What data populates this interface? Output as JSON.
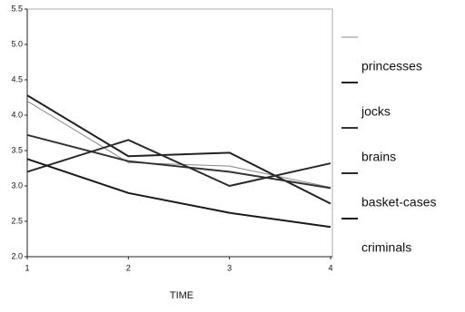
{
  "chart_data": {
    "type": "line",
    "x_label": "TIME",
    "x": [
      1,
      2,
      3,
      4
    ],
    "xlim": [
      1,
      4
    ],
    "xticks": [
      1,
      2,
      3,
      4
    ],
    "ylim": [
      2,
      5.5
    ],
    "yticks": [
      {
        "value": 2,
        "label": "2.0"
      },
      2.5,
      {
        "value": 3,
        "label": "3.0"
      },
      3.5,
      {
        "value": 4,
        "label": "4.0"
      },
      4.5,
      {
        "value": 5,
        "label": "5.0"
      },
      5.5
    ],
    "series": [
      {
        "name": "princesses",
        "color": "#888888",
        "values": [
          4.2,
          3.33,
          3.28,
          2.98
        ]
      },
      {
        "name": "jocks",
        "color": "#222222",
        "values": [
          4.28,
          3.42,
          3.47,
          2.75
        ]
      },
      {
        "name": "brains",
        "color": "#333333",
        "values": [
          3.72,
          3.35,
          3.2,
          2.97
        ]
      },
      {
        "name": "basket-cases",
        "color": "#2a2a2a",
        "values": [
          3.2,
          3.65,
          3.0,
          3.32
        ]
      },
      {
        "name": "criminals",
        "color": "#1a1a1a",
        "values": [
          3.38,
          2.9,
          2.62,
          2.42
        ]
      }
    ]
  }
}
